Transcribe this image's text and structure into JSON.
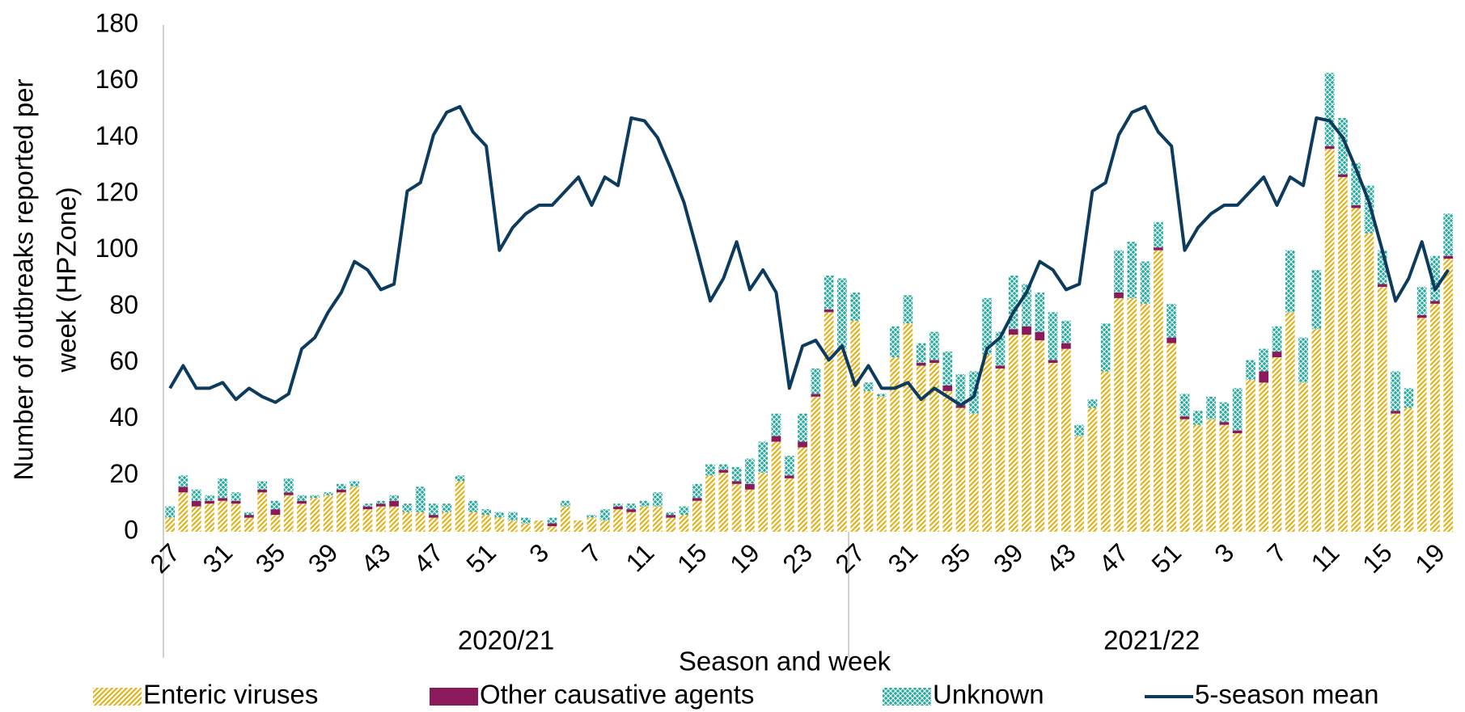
{
  "chart_data": {
    "type": "bar",
    "stacked": true,
    "ylabel": [
      "Number of outbreaks reported per",
      "week (HPZone)"
    ],
    "xlabel": "Season and week",
    "ylim": [
      0,
      180
    ],
    "yticks": [
      0,
      20,
      40,
      60,
      80,
      100,
      120,
      140,
      160,
      180
    ],
    "grid": false,
    "legend": "bottom",
    "groups": [
      {
        "label": "2020/21",
        "categories": [
          "27",
          null,
          null,
          null,
          "31",
          null,
          null,
          null,
          "35",
          null,
          null,
          null,
          "39",
          null,
          null,
          null,
          "43",
          null,
          null,
          null,
          "47",
          null,
          null,
          null,
          "51",
          null,
          null,
          null,
          "3",
          null,
          null,
          null,
          "7",
          null,
          null,
          null,
          "11",
          null,
          null,
          null,
          "15",
          null,
          null,
          null,
          "19",
          null,
          null,
          null,
          "23",
          null,
          null,
          null
        ]
      },
      {
        "label": "2021/22",
        "categories": [
          "27",
          null,
          null,
          null,
          "31",
          null,
          null,
          null,
          "35",
          null,
          null,
          null,
          "39",
          null,
          null,
          null,
          "43",
          null,
          null,
          null,
          "47",
          null,
          null,
          null,
          "51",
          null,
          null,
          null,
          "3",
          null,
          null,
          null,
          "7",
          null,
          null,
          null,
          "11",
          null,
          null,
          null,
          "15",
          null,
          null,
          null,
          "19",
          null
        ]
      }
    ],
    "series": [
      {
        "name": "Enteric viruses",
        "color": "#e3b21c",
        "pattern": "diagonal",
        "values": [
          5,
          14,
          9,
          10,
          11,
          10,
          5,
          14,
          6,
          13,
          10,
          12,
          13,
          14,
          16,
          8,
          9,
          9,
          7,
          7,
          5,
          7,
          18,
          7,
          6,
          5,
          4,
          3,
          4,
          2,
          9,
          4,
          5,
          4,
          8,
          7,
          9,
          9,
          5,
          6,
          11,
          20,
          21,
          17,
          15,
          21,
          32,
          19,
          30,
          48,
          78,
          65,
          75,
          50,
          48,
          62,
          74,
          59,
          60,
          50,
          44,
          42,
          63,
          58,
          70,
          70,
          68,
          60,
          65,
          34,
          44,
          57,
          83,
          83,
          81,
          100,
          67,
          40,
          38,
          40,
          38,
          35,
          54,
          53,
          62,
          78,
          53,
          72,
          136,
          126,
          115,
          106,
          87,
          42,
          44,
          76,
          81,
          97
        ]
      },
      {
        "name": "Other causative agents",
        "color": "#8a1a5c",
        "values": [
          0,
          2,
          2,
          1,
          1,
          1,
          1,
          1,
          2,
          1,
          1,
          0,
          0,
          1,
          0,
          1,
          1,
          2,
          0,
          0,
          1,
          0,
          0,
          0,
          0,
          0,
          0,
          0,
          0,
          1,
          0,
          0,
          0,
          0,
          1,
          1,
          0,
          0,
          1,
          0,
          1,
          0,
          1,
          1,
          2,
          0,
          2,
          1,
          2,
          1,
          1,
          0,
          0,
          0,
          0,
          0,
          0,
          1,
          1,
          2,
          1,
          0,
          0,
          1,
          2,
          3,
          3,
          1,
          2,
          0,
          0,
          0,
          2,
          0,
          0,
          1,
          2,
          1,
          0,
          0,
          1,
          1,
          0,
          4,
          2,
          0,
          0,
          0,
          1,
          1,
          1,
          0,
          1,
          1,
          0,
          1,
          1,
          1
        ]
      },
      {
        "name": "Unknown",
        "color": "#25ab9e",
        "pattern": "cross",
        "values": [
          4,
          4,
          4,
          2,
          7,
          3,
          1,
          3,
          3,
          5,
          2,
          1,
          1,
          2,
          2,
          1,
          1,
          2,
          3,
          9,
          4,
          3,
          2,
          4,
          2,
          2,
          3,
          2,
          0,
          2,
          2,
          0,
          1,
          4,
          1,
          2,
          2,
          5,
          1,
          3,
          5,
          4,
          2,
          5,
          9,
          11,
          8,
          7,
          10,
          9,
          12,
          25,
          10,
          3,
          1,
          11,
          10,
          7,
          10,
          12,
          11,
          15,
          20,
          12,
          19,
          15,
          14,
          17,
          8,
          4,
          3,
          17,
          15,
          20,
          15,
          9,
          12,
          8,
          5,
          8,
          7,
          15,
          7,
          8,
          9,
          22,
          16,
          21,
          26,
          20,
          15,
          17,
          12,
          14,
          7,
          10,
          16,
          15
        ]
      },
      {
        "name": "5-season mean",
        "color": "#0d3b5e",
        "type": "line",
        "values": [
          51,
          59,
          51,
          51,
          53,
          47,
          51,
          48,
          46,
          49,
          65,
          69,
          78,
          85,
          96,
          93,
          86,
          88,
          121,
          124,
          141,
          149,
          151,
          142,
          137,
          100,
          108,
          113,
          116,
          116,
          121,
          126,
          116,
          126,
          123,
          147,
          146,
          140,
          129,
          117,
          100,
          82,
          90,
          103,
          86,
          93,
          85,
          51,
          66,
          68,
          61,
          66,
          52,
          59,
          51,
          51,
          53,
          47,
          51,
          48,
          45,
          48,
          65,
          69,
          78,
          85,
          96,
          93,
          86,
          88,
          121,
          124,
          141,
          149,
          151,
          142,
          137,
          100,
          108,
          113,
          116,
          116,
          121,
          126,
          116,
          126,
          123,
          147,
          146,
          140,
          129,
          117,
          100,
          82,
          90,
          103,
          86,
          93
        ]
      }
    ]
  }
}
